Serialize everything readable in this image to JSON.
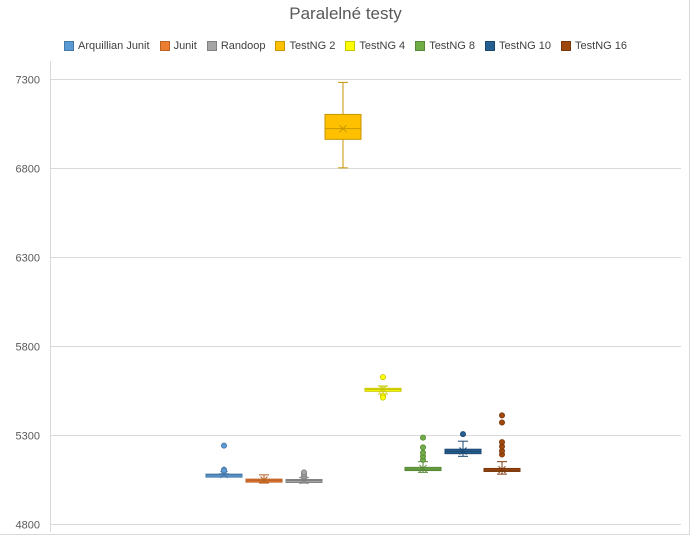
{
  "chart_data": {
    "type": "box",
    "title": "Paralelné testy",
    "xlabel": "",
    "ylabel": "",
    "ylim": [
      4800,
      7400
    ],
    "yticks": [
      4800,
      5300,
      5800,
      6300,
      6800,
      7300
    ],
    "ytick_labels": [
      "4800",
      "5300",
      "5800",
      "6300",
      "6800",
      "7300"
    ],
    "grid": true,
    "legend_position": "top",
    "series": [
      {
        "name": "Arquillian Junit",
        "color": "#5b9bd5",
        "q1": 5072,
        "median": 5076,
        "q3": 5080,
        "mean": 5078,
        "whisker_low": 5068,
        "whisker_high": 5082,
        "outliers": [
          5240,
          5105,
          5100
        ]
      },
      {
        "name": "Junit",
        "color": "#ed7d31",
        "q1": 5040,
        "median": 5045,
        "q3": 5052,
        "mean": 5047,
        "whisker_low": 5030,
        "whisker_high": 5076,
        "outliers": []
      },
      {
        "name": "Randoop",
        "color": "#a5a5a5",
        "q1": 5040,
        "median": 5044,
        "q3": 5050,
        "mean": 5045,
        "whisker_low": 5030,
        "whisker_high": 5060,
        "outliers": [
          5070,
          5080,
          5090
        ]
      },
      {
        "name": "TestNG 2",
        "color": "#ffc000",
        "q1": 6960,
        "median": 7020,
        "q3": 7100,
        "mean": 7020,
        "whisker_low": 6800,
        "whisker_high": 7280,
        "outliers": []
      },
      {
        "name": "TestNG 4",
        "color": "#ffff00",
        "q1": 5550,
        "median": 5555,
        "q3": 5562,
        "mean": 5557,
        "whisker_low": 5530,
        "whisker_high": 5575,
        "outliers": [
          5625,
          5520,
          5510
        ]
      },
      {
        "name": "TestNG 8",
        "color": "#70ad47",
        "q1": 5100,
        "median": 5108,
        "q3": 5118,
        "mean": 5112,
        "whisker_low": 5090,
        "whisker_high": 5150,
        "outliers": [
          5160,
          5180,
          5200,
          5230,
          5285
        ]
      },
      {
        "name": "TestNG 10",
        "color": "#255e91",
        "q1": 5195,
        "median": 5208,
        "q3": 5220,
        "mean": 5210,
        "whisker_low": 5180,
        "whisker_high": 5265,
        "outliers": [
          5305
        ]
      },
      {
        "name": "TestNG 16",
        "color": "#9e480e",
        "q1": 5095,
        "median": 5102,
        "q3": 5112,
        "mean": 5105,
        "whisker_low": 5080,
        "whisker_high": 5150,
        "outliers": [
          5190,
          5210,
          5235,
          5260,
          5370,
          5410
        ]
      }
    ]
  }
}
